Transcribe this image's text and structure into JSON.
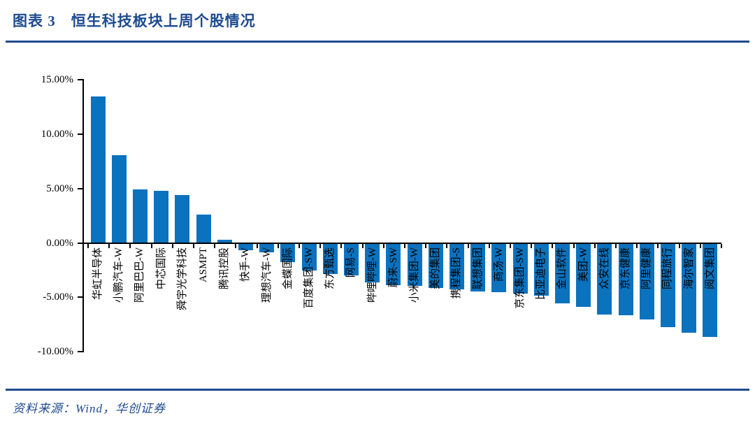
{
  "header": {
    "title": "图表 3　恒生科技板块上周个股情况"
  },
  "footer": {
    "source": "资料来源：Wind，华创证券"
  },
  "colors": {
    "accent_navy": "#1E4B8F",
    "bar_blue": "#0B72BE",
    "axis_black": "#000000"
  },
  "chart_data": {
    "type": "bar",
    "title": "恒生科技板块上周个股情况",
    "xlabel": "",
    "ylabel": "",
    "ylim": [
      -10,
      15
    ],
    "grid": false,
    "legend": "none",
    "bar_color": "#0B72BE",
    "yticks": [
      15,
      10,
      5,
      0,
      -5,
      -10
    ],
    "ytick_labels": [
      "15.00%",
      "10.00%",
      "5.00%",
      "0.00%",
      "-5.00%",
      "-10.00%"
    ],
    "categories": [
      "华虹半导体",
      "小鹏汽车-W",
      "阿里巴巴-W",
      "中芯国际",
      "舜宇光学科技",
      "ASMPT",
      "腾讯控股",
      "快手-W",
      "理想汽车-W",
      "金蝶国际",
      "百度集团-SW",
      "东方甄选",
      "网易-S",
      "哔哩哔哩-W",
      "蔚来-SW",
      "小米集团-W",
      "美的集团",
      "携程集团-S",
      "联想集团",
      "商汤-W",
      "京东集团-SW",
      "比亚迪电子",
      "金山软件",
      "美团-W",
      "众安在线",
      "京东健康",
      "阿里健康",
      "同程旅行",
      "海尔智家",
      "阅文集团"
    ],
    "values": [
      13.5,
      8.1,
      4.9,
      4.8,
      4.4,
      2.6,
      0.3,
      -0.6,
      -0.8,
      -1.7,
      -2.5,
      -2.8,
      -2.9,
      -3.6,
      -3.8,
      -3.9,
      -4.1,
      -4.2,
      -4.4,
      -4.5,
      -4.6,
      -4.8,
      -5.5,
      -5.8,
      -6.5,
      -6.6,
      -7.0,
      -7.7,
      -8.2,
      -8.6
    ]
  }
}
